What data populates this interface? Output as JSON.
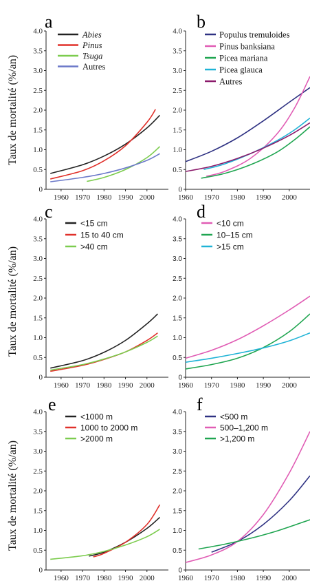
{
  "ylabels": [
    "Taux de mortalité (%/an)",
    "Taux de mortalité (%/an)",
    "Taux de mortalité (%/an)"
  ],
  "chart_data": [
    {
      "panel": "a",
      "type": "line",
      "ylim": [
        0,
        4.0
      ],
      "yticks": [
        "0",
        "0.5",
        "1.0",
        "1.5",
        "2.0",
        "2.5",
        "3.0",
        "3.5",
        "4.0"
      ],
      "xlim": [
        1953,
        2010
      ],
      "xticks": [
        1960,
        1970,
        1980,
        1990,
        2000
      ],
      "legend_placement": "top-left",
      "series": [
        {
          "name": "Abies",
          "italic": true,
          "color": "#222222",
          "x": [
            1955,
            1970,
            1980,
            1990,
            2000,
            2006
          ],
          "y": [
            0.4,
            0.62,
            0.84,
            1.14,
            1.55,
            1.87
          ]
        },
        {
          "name": "Pinus",
          "italic": true,
          "color": "#e0302a",
          "x": [
            1955,
            1970,
            1980,
            1990,
            2000,
            2004
          ],
          "y": [
            0.26,
            0.47,
            0.72,
            1.1,
            1.69,
            2.02
          ]
        },
        {
          "name": "Tsuga",
          "italic": true,
          "color": "#7ccc4e",
          "x": [
            1972,
            1980,
            1990,
            2000,
            2006
          ],
          "y": [
            0.2,
            0.3,
            0.5,
            0.8,
            1.08
          ]
        },
        {
          "name": "Autres",
          "italic": false,
          "color": "#6b79c9",
          "x": [
            1955,
            1970,
            1980,
            1990,
            2000,
            2006
          ],
          "y": [
            0.19,
            0.3,
            0.4,
            0.54,
            0.73,
            0.9
          ]
        }
      ]
    },
    {
      "panel": "b",
      "type": "line",
      "ylim": [
        0,
        4.0
      ],
      "yticks": [
        "0",
        "0.5",
        "1.0",
        "1.5",
        "2.0",
        "2.5",
        "3.0",
        "3.5",
        "4.0"
      ],
      "xlim": [
        1960,
        2008
      ],
      "xticks": [
        1960,
        1970,
        1980,
        1990,
        2000
      ],
      "legend_placement": "top-left",
      "series": [
        {
          "name": "Populus tremuloides",
          "italic": false,
          "color": "#2e3182",
          "x": [
            1960,
            1970,
            1980,
            1990,
            2000,
            2008
          ],
          "y": [
            0.7,
            0.96,
            1.3,
            1.73,
            2.2,
            2.57
          ]
        },
        {
          "name": "Pinus banksiana",
          "italic": false,
          "color": "#e05cb4",
          "x": [
            1968,
            1975,
            1985,
            1995,
            2002,
            2008
          ],
          "y": [
            0.33,
            0.45,
            0.78,
            1.38,
            2.05,
            2.85
          ]
        },
        {
          "name": "Picea mariana",
          "italic": false,
          "color": "#1fa550",
          "x": [
            1966,
            1975,
            1985,
            1995,
            2002,
            2008
          ],
          "y": [
            0.28,
            0.4,
            0.62,
            0.93,
            1.25,
            1.58
          ]
        },
        {
          "name": "Picea glauca",
          "italic": false,
          "color": "#1fb3d6",
          "x": [
            1967,
            1975,
            1985,
            1995,
            2002,
            2008
          ],
          "y": [
            0.5,
            0.64,
            0.9,
            1.22,
            1.5,
            1.8
          ]
        },
        {
          "name": "Autres",
          "italic": false,
          "color": "#8b1a6b",
          "x": [
            1960,
            1970,
            1980,
            1990,
            2000,
            2008
          ],
          "y": [
            0.45,
            0.58,
            0.78,
            1.04,
            1.36,
            1.68
          ]
        }
      ]
    },
    {
      "panel": "c",
      "type": "line",
      "ylim": [
        0,
        4.0
      ],
      "yticks": [
        "0",
        "0.5",
        "1.0",
        "1.5",
        "2.0",
        "2.5",
        "3.0",
        "3.5",
        "4.0"
      ],
      "xlim": [
        1953,
        2010
      ],
      "xticks": [
        1960,
        1970,
        1980,
        1990,
        2000
      ],
      "legend_placement": "top-left",
      "series": [
        {
          "name": "<15 cm",
          "italic": false,
          "color": "#222222",
          "x": [
            1955,
            1970,
            1980,
            1990,
            2000,
            2005
          ],
          "y": [
            0.23,
            0.42,
            0.63,
            0.93,
            1.35,
            1.6
          ]
        },
        {
          "name": "15 to 40 cm",
          "italic": false,
          "color": "#e0302a",
          "x": [
            1955,
            1970,
            1980,
            1990,
            2000,
            2005
          ],
          "y": [
            0.15,
            0.3,
            0.45,
            0.64,
            0.93,
            1.12
          ]
        },
        {
          "name": ">40 cm",
          "italic": false,
          "color": "#7ccc4e",
          "x": [
            1955,
            1970,
            1980,
            1990,
            2000,
            2005
          ],
          "y": [
            0.18,
            0.32,
            0.46,
            0.64,
            0.88,
            1.04
          ]
        }
      ]
    },
    {
      "panel": "d",
      "type": "line",
      "ylim": [
        0,
        4.0
      ],
      "yticks": [
        "0",
        "0.5",
        "1.0",
        "1.5",
        "2.0",
        "2.5",
        "3.0",
        "3.5",
        "4.0"
      ],
      "xlim": [
        1960,
        2008
      ],
      "xticks": [
        1960,
        1970,
        1980,
        1990,
        2000
      ],
      "legend_placement": "top-left",
      "series": [
        {
          "name": "<10 cm",
          "italic": false,
          "color": "#e05cb4",
          "x": [
            1960,
            1970,
            1980,
            1990,
            2000,
            2008
          ],
          "y": [
            0.48,
            0.68,
            0.95,
            1.3,
            1.7,
            2.05
          ]
        },
        {
          "name": "10–15 cm",
          "italic": false,
          "color": "#1fa550",
          "x": [
            1960,
            1970,
            1980,
            1990,
            2000,
            2008
          ],
          "y": [
            0.21,
            0.32,
            0.48,
            0.75,
            1.15,
            1.6
          ]
        },
        {
          "name": ">15 cm",
          "italic": false,
          "color": "#1fb3d6",
          "x": [
            1960,
            1970,
            1980,
            1990,
            2000,
            2008
          ],
          "y": [
            0.38,
            0.48,
            0.6,
            0.74,
            0.92,
            1.12
          ]
        }
      ]
    },
    {
      "panel": "e",
      "type": "line",
      "ylim": [
        0,
        4.0
      ],
      "yticks": [
        "0",
        "0.5",
        "1.0",
        "1.5",
        "2.0",
        "2.5",
        "3.0",
        "3.5",
        "4.0"
      ],
      "xlim": [
        1953,
        2010
      ],
      "xticks": [
        1960,
        1970,
        1980,
        1990,
        2000
      ],
      "legend_placement": "top-left",
      "series": [
        {
          "name": "<1000 m",
          "italic": false,
          "color": "#222222",
          "x": [
            1973,
            1980,
            1990,
            2000,
            2006
          ],
          "y": [
            0.35,
            0.45,
            0.7,
            1.05,
            1.33
          ]
        },
        {
          "name": "1000 to 2000 m",
          "italic": false,
          "color": "#e0302a",
          "x": [
            1975,
            1980,
            1990,
            2000,
            2006
          ],
          "y": [
            0.33,
            0.42,
            0.7,
            1.15,
            1.65
          ]
        },
        {
          "name": ">2000 m",
          "italic": false,
          "color": "#7ccc4e",
          "x": [
            1955,
            1970,
            1980,
            1990,
            2000,
            2006
          ],
          "y": [
            0.27,
            0.36,
            0.47,
            0.63,
            0.84,
            1.03
          ]
        }
      ]
    },
    {
      "panel": "f",
      "type": "line",
      "ylim": [
        0,
        4.0
      ],
      "yticks": [
        "0",
        "0.5",
        "1.0",
        "1.5",
        "2.0",
        "2.5",
        "3.0",
        "3.5",
        "4.0"
      ],
      "xlim": [
        1960,
        2008
      ],
      "xticks": [
        1960,
        1970,
        1980,
        1990,
        2000
      ],
      "legend_placement": "top-left",
      "series": [
        {
          "name": "<500 m",
          "italic": false,
          "color": "#2e3182",
          "x": [
            1970,
            1980,
            1990,
            2000,
            2008
          ],
          "y": [
            0.45,
            0.72,
            1.15,
            1.75,
            2.38
          ]
        },
        {
          "name": "500–1,200 m",
          "italic": false,
          "color": "#e05cb4",
          "x": [
            1960,
            1970,
            1980,
            1990,
            2000,
            2008
          ],
          "y": [
            0.19,
            0.38,
            0.72,
            1.4,
            2.45,
            3.5
          ]
        },
        {
          "name": ">1,200 m",
          "italic": false,
          "color": "#1fa550",
          "x": [
            1965,
            1975,
            1985,
            1995,
            2008
          ],
          "y": [
            0.53,
            0.65,
            0.8,
            0.98,
            1.27
          ]
        }
      ]
    }
  ]
}
